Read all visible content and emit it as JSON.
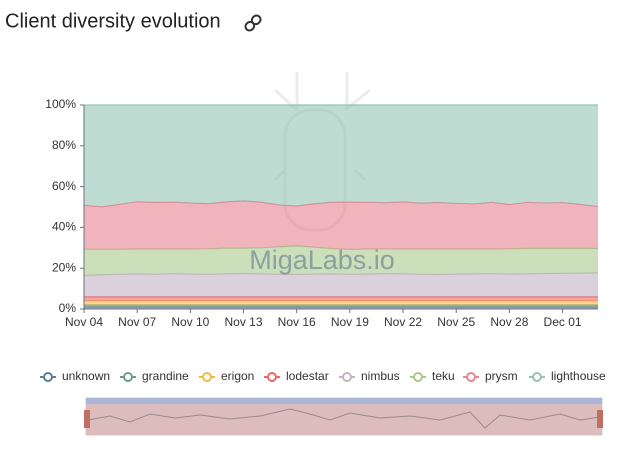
{
  "chart_data": {
    "type": "stacked-area",
    "title": "Client diversity evolution",
    "watermark": "MigaLabs.io",
    "categories": [
      "Nov 04",
      null,
      null,
      "Nov 07",
      null,
      null,
      "Nov 10",
      null,
      null,
      "Nov 13",
      null,
      null,
      "Nov 16",
      null,
      null,
      "Nov 19",
      null,
      null,
      "Nov 22",
      null,
      null,
      "Nov 25",
      null,
      null,
      "Nov 28",
      null,
      null,
      "Dec 01",
      null,
      null
    ],
    "ylim": [
      0,
      100
    ],
    "yticks": [
      {
        "value": 0,
        "label": "0%"
      },
      {
        "value": 20,
        "label": "20%"
      },
      {
        "value": 40,
        "label": "40%"
      },
      {
        "value": 60,
        "label": "60%"
      },
      {
        "value": 80,
        "label": "80%"
      },
      {
        "value": 100,
        "label": "100%"
      }
    ],
    "series": [
      {
        "name": "unknown",
        "color": "#5d7f9e",
        "values": [
          1,
          1,
          1,
          1,
          1,
          1,
          1,
          1,
          1,
          1,
          1,
          1,
          1,
          1,
          1,
          1,
          1,
          1,
          1,
          1,
          1,
          1,
          1,
          1,
          1,
          1,
          1,
          1,
          1,
          1
        ]
      },
      {
        "name": "grandine",
        "color": "#6f9c92",
        "values": [
          1,
          1,
          1,
          1,
          1,
          1,
          1,
          1,
          1,
          1,
          1,
          1,
          1,
          1,
          1,
          1,
          1,
          1,
          1,
          1,
          1,
          1,
          1,
          1,
          1,
          1,
          1,
          1,
          1,
          1
        ]
      },
      {
        "name": "erigon",
        "color": "#f5b942",
        "values": [
          2,
          2,
          2,
          2,
          2,
          2,
          2,
          2,
          2,
          2,
          2,
          2,
          2,
          2,
          2,
          2,
          2,
          2,
          2,
          2,
          2,
          2,
          2,
          2,
          2,
          2,
          2,
          2,
          2,
          2
        ]
      },
      {
        "name": "lodestar",
        "color": "#ee6666",
        "values": [
          2,
          2,
          2,
          2,
          2,
          2,
          2,
          2,
          2,
          2,
          2,
          2,
          2,
          2,
          2,
          2,
          2,
          2,
          2,
          2,
          2,
          2,
          2,
          2,
          2,
          2,
          2,
          2,
          2,
          2
        ]
      },
      {
        "name": "nimbus",
        "color": "#c3b3c6",
        "values": [
          10.5,
          10.8,
          11,
          11.2,
          11,
          11.3,
          11.1,
          11,
          11.2,
          11.4,
          11.2,
          11,
          10.9,
          11.1,
          11.2,
          11,
          11.1,
          11.3,
          11.2,
          11,
          10.9,
          11.1,
          11.2,
          11.3,
          11.1,
          11.2,
          11.4,
          11.5,
          11.6,
          11.7
        ]
      },
      {
        "name": "teku",
        "color": "#a9c98c",
        "values": [
          12.8,
          12.5,
          12.3,
          12.2,
          12.4,
          12.1,
          12.3,
          12.5,
          12.6,
          12.4,
          12.8,
          13.5,
          14,
          13.2,
          12.4,
          12.2,
          12.3,
          12.1,
          12.2,
          12.4,
          12.5,
          12.3,
          12.2,
          12.1,
          12.4,
          12.5,
          12.3,
          12.2,
          12.1,
          12.0
        ]
      },
      {
        "name": "prysm",
        "color": "#e6848f",
        "values": [
          21.5,
          20.8,
          22,
          23.2,
          22.8,
          23,
          22.6,
          22.1,
          22.7,
          23.2,
          22.4,
          20.5,
          19.6,
          21.3,
          22.8,
          23.2,
          22.9,
          22.7,
          23.1,
          22.5,
          22.8,
          22.4,
          22.1,
          22.9,
          21.7,
          22.6,
          22.3,
          22.5,
          21.6,
          20.5
        ]
      },
      {
        "name": "lighthouse",
        "color": "#95c4b6",
        "values": [
          49.2,
          49.9,
          48.7,
          47.4,
          47.8,
          47.6,
          48,
          48.4,
          47.5,
          47,
          47.6,
          49,
          49.5,
          48.4,
          47.6,
          47.6,
          47.7,
          47.9,
          47.5,
          48.1,
          47.8,
          48.2,
          48.5,
          47.7,
          48.8,
          47.7,
          48,
          47.8,
          48.7,
          49.8
        ]
      }
    ]
  }
}
